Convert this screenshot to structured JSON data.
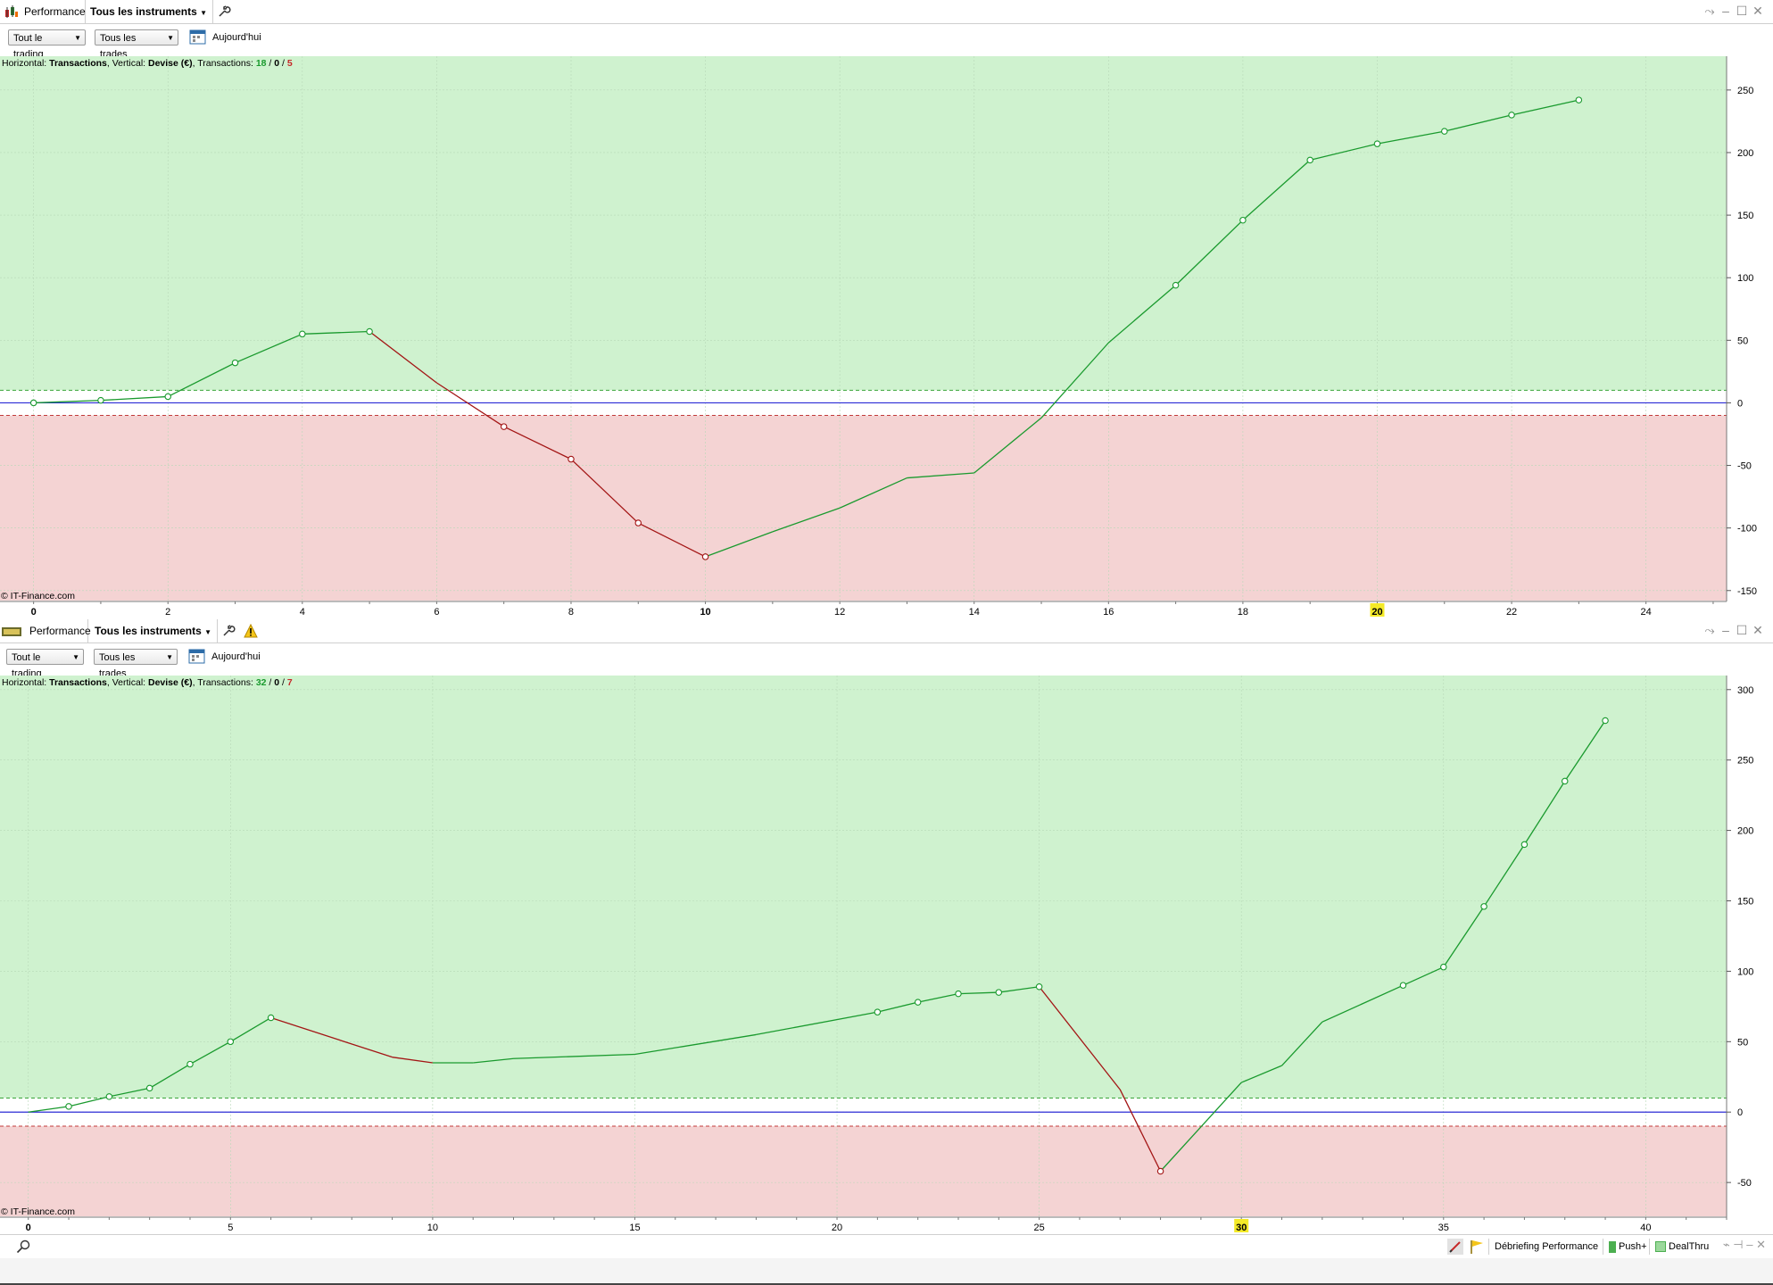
{
  "panels": [
    {
      "tab_title": "Performance",
      "instrument_selector": "Tous les instruments",
      "trading_filter": "Tout le trading",
      "trades_filter": "Tous les trades",
      "date_label": "Aujourd'hui",
      "info": {
        "h_label": "Horizontal: ",
        "h_value": "Transactions",
        "v_label": ", Vertical: ",
        "v_value": "Devise (€)",
        "t_label": ", Transactions: ",
        "wins": "18",
        "neutral": "0",
        "losses": "5",
        "slash": " / "
      },
      "copyright": "© IT-Finance.com",
      "has_warning_icon": false
    },
    {
      "tab_title": "Performance",
      "instrument_selector": "Tous les instruments",
      "trading_filter": "Tout le trading",
      "trades_filter": "Tous les trades",
      "date_label": "Aujourd'hui",
      "info": {
        "h_label": "Horizontal: ",
        "h_value": "Transactions",
        "v_label": ", Vertical: ",
        "v_value": "Devise (€)",
        "t_label": ", Transactions: ",
        "wins": "32",
        "neutral": "0",
        "losses": "7",
        "slash": " / "
      },
      "copyright": "© IT-Finance.com",
      "has_warning_icon": true
    }
  ],
  "chart_data": [
    {
      "type": "line",
      "series": [
        {
          "x": [
            0,
            1,
            2,
            3,
            4,
            5,
            6,
            7,
            8,
            9,
            10,
            11,
            12,
            13,
            14,
            15,
            16,
            17,
            18,
            19,
            20,
            21,
            22,
            23
          ],
          "y": [
            0,
            2,
            5,
            32,
            55,
            57,
            16,
            -19,
            -45,
            -96,
            -123,
            -103,
            -84,
            -60,
            -56,
            -12,
            48,
            94,
            146,
            194,
            207,
            217,
            230,
            242
          ],
          "markers": [
            true,
            true,
            true,
            true,
            true,
            true,
            false,
            true,
            true,
            true,
            true,
            false,
            false,
            false,
            false,
            false,
            false,
            true,
            true,
            true,
            true,
            true,
            true,
            true
          ],
          "colors": {
            "gain": "#1a9a2e",
            "loss": "#a31515"
          }
        }
      ],
      "xlim": [
        -0.5,
        25.2
      ],
      "ylim": [
        -158,
        277
      ],
      "xticks": [
        0,
        2,
        4,
        6,
        8,
        10,
        12,
        14,
        16,
        18,
        20,
        22,
        24
      ],
      "xticks_bold": [
        0,
        10
      ],
      "xtick_highlight": 20,
      "yticks": [
        250,
        200,
        150,
        100,
        50,
        0,
        -50,
        -100,
        -150
      ],
      "xlabel": "Transactions",
      "ylabel": "Devise (€)",
      "zero_line": 0,
      "gain_threshold": 10,
      "loss_threshold": -10,
      "grid": true,
      "background_gain": "#cff2cf",
      "background_loss": "#f4d3d3"
    },
    {
      "type": "line",
      "series": [
        {
          "x": [
            0,
            1,
            2,
            3,
            4,
            5,
            6,
            9,
            10,
            11,
            12,
            15,
            18,
            21,
            22,
            23,
            24,
            25,
            27,
            28,
            30,
            31,
            32,
            34,
            35,
            36,
            37,
            38,
            39
          ],
          "y": [
            0,
            4,
            11,
            17,
            34,
            50,
            67,
            39,
            35,
            35,
            38,
            41,
            55,
            71,
            78,
            84,
            85,
            89,
            16,
            -42,
            21,
            33,
            64,
            90,
            103,
            146,
            190,
            235,
            278
          ],
          "markers": [
            false,
            true,
            true,
            true,
            true,
            true,
            true,
            false,
            false,
            false,
            false,
            false,
            false,
            true,
            true,
            true,
            true,
            true,
            false,
            true,
            false,
            false,
            false,
            true,
            true,
            true,
            true,
            true,
            true
          ],
          "colors": {
            "gain": "#1a9a2e",
            "loss": "#a31515"
          }
        }
      ],
      "xlim": [
        -0.7,
        42
      ],
      "ylim": [
        -74,
        310
      ],
      "xticks": [
        0,
        5,
        10,
        15,
        20,
        25,
        30,
        35,
        40
      ],
      "xticks_bold": [
        0
      ],
      "xtick_highlight": 30,
      "yticks": [
        300,
        250,
        200,
        150,
        100,
        50,
        0,
        -50
      ],
      "xlabel": "Transactions",
      "ylabel": "Devise (€)",
      "zero_line": 0,
      "gain_threshold": 10,
      "loss_threshold": -10,
      "grid": true,
      "background_gain": "#cff2cf",
      "background_loss": "#f4d3d3"
    }
  ],
  "statusbar": {
    "debriefing": "Débriefing Performance",
    "push": "Push+",
    "dealthru": "DealThru"
  },
  "icons": {
    "tool": "wrench-icon",
    "search": "search-icon",
    "share": "share-icon",
    "minimize": "minimize-icon",
    "maximize": "maximize-icon",
    "close": "close-icon",
    "warning": "warning-icon",
    "calendar": "calendar-icon",
    "flag": "flag-icon",
    "pencil": "pencil-icon"
  }
}
